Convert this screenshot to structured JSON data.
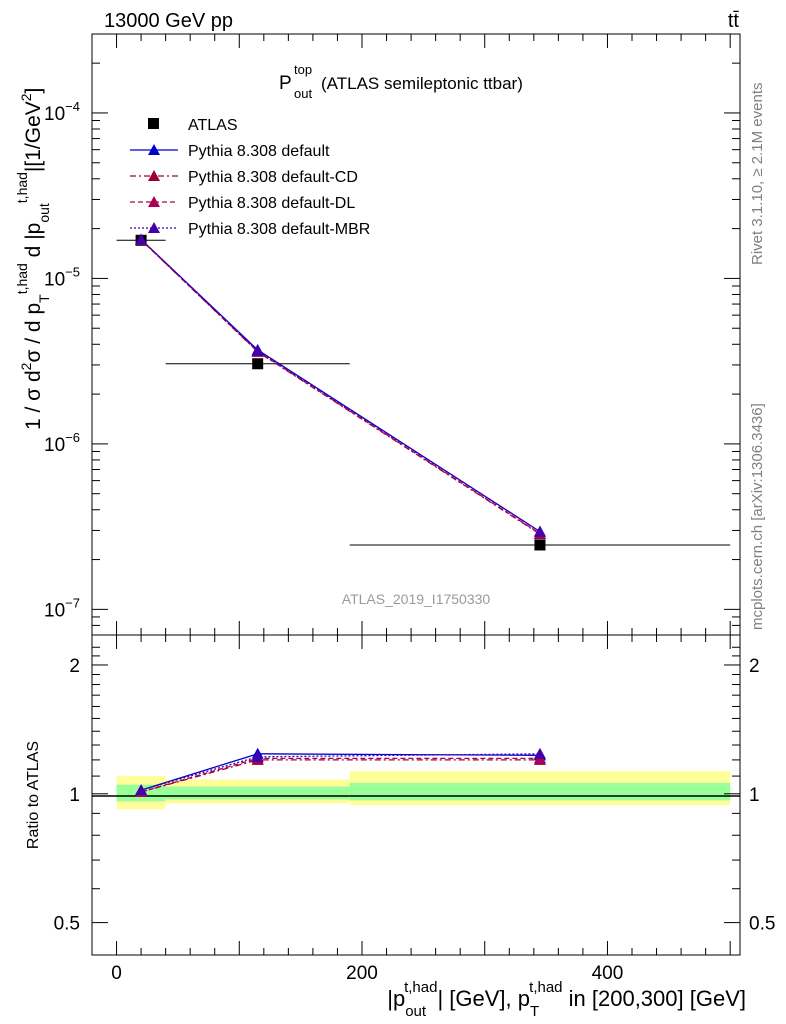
{
  "header": {
    "beam": "13000 GeV pp",
    "process": "tt̄"
  },
  "side_labels": {
    "rivet": "Rivet 3.1.10, ≥ 2.1M events",
    "source": "mcplots.cern.ch [arXiv:1306.3436]"
  },
  "analysis_id": "ATLAS_2019_I1750330",
  "chart_data": [
    {
      "type": "line",
      "title": "P_out^top (ATLAS semileptonic ttbar)",
      "title_main": "P",
      "title_sup": "top",
      "title_sub": "out",
      "title_rest": "(ATLAS semileptonic ttbar)",
      "ylabel": "1 / σ d²σ / d p_T^{t,had} d |p_out^{t,had}| [1/GeV²]",
      "yscale": "log",
      "xlim": [
        -20,
        508
      ],
      "ylim": [
        7e-08,
        0.0003
      ],
      "y_ticks": [
        {
          "label": "10",
          "exp": "−7",
          "value": 1e-07
        },
        {
          "label": "10",
          "exp": "−6",
          "value": 1e-06
        },
        {
          "label": "10",
          "exp": "−5",
          "value": 1e-05
        },
        {
          "label": "10",
          "exp": "−4",
          "value": 0.0001
        }
      ],
      "legend_position": "top-left",
      "series": [
        {
          "name": "ATLAS",
          "kind": "data",
          "color": "#000000",
          "x": [
            20,
            115,
            345
          ],
          "y": [
            1.7e-05,
            3.05e-06,
            2.45e-07
          ],
          "xerr": [
            20,
            75,
            155
          ]
        },
        {
          "name": "Pythia 8.308 default",
          "kind": "mc",
          "color": "#0000cc",
          "dash": "solid",
          "x": [
            20,
            115,
            345
          ],
          "y": [
            1.72e-05,
            3.7e-06,
            2.95e-07
          ]
        },
        {
          "name": "Pythia 8.308 default-CD",
          "kind": "mc",
          "color": "#990033",
          "dash": "6,3,2,3",
          "x": [
            20,
            115,
            345
          ],
          "y": [
            1.71e-05,
            3.6e-06,
            2.85e-07
          ]
        },
        {
          "name": "Pythia 8.308 default-DL",
          "kind": "mc",
          "color": "#aa0055",
          "dash": "5,3",
          "x": [
            20,
            115,
            345
          ],
          "y": [
            1.71e-05,
            3.62e-06,
            2.87e-07
          ]
        },
        {
          "name": "Pythia 8.308 default-MBR",
          "kind": "mc",
          "color": "#4400aa",
          "dash": "2,2",
          "x": [
            20,
            115,
            345
          ],
          "y": [
            1.72e-05,
            3.65e-06,
            2.95e-07
          ]
        }
      ]
    },
    {
      "type": "line",
      "ylabel": "Ratio to ATLAS",
      "xlabel": "|p_out^{t,had}| [GeV], p_T^{t,had} in [200,300] [GeV]",
      "yscale": "log",
      "xlim": [
        -20,
        508
      ],
      "ylim": [
        0.42,
        2.35
      ],
      "x_ticks": [
        0,
        200,
        400
      ],
      "y_ticks": [
        0.5,
        1,
        2
      ],
      "bands": [
        {
          "x": [
            0,
            40
          ],
          "green": [
            0.96,
            1.05
          ],
          "yellow": [
            0.92,
            1.1
          ]
        },
        {
          "x": [
            40,
            190
          ],
          "green": [
            0.97,
            1.04
          ],
          "yellow": [
            0.95,
            1.08
          ]
        },
        {
          "x": [
            190,
            500
          ],
          "green": [
            0.965,
            1.06
          ],
          "yellow": [
            0.94,
            1.13
          ]
        }
      ],
      "series": [
        {
          "name": "Pythia 8.308 default",
          "color": "#0000cc",
          "dash": "solid",
          "x": [
            20,
            115,
            345
          ],
          "y": [
            1.02,
            1.24,
            1.23
          ]
        },
        {
          "name": "Pythia 8.308 default-CD",
          "color": "#990033",
          "dash": "6,3,2,3",
          "x": [
            20,
            115,
            345
          ],
          "y": [
            1.01,
            1.2,
            1.2
          ]
        },
        {
          "name": "Pythia 8.308 default-DL",
          "color": "#aa0055",
          "dash": "5,3",
          "x": [
            20,
            115,
            345
          ],
          "y": [
            1.01,
            1.21,
            1.21
          ]
        },
        {
          "name": "Pythia 8.308 default-MBR",
          "color": "#4400aa",
          "dash": "2,2",
          "x": [
            20,
            115,
            345
          ],
          "y": [
            1.02,
            1.22,
            1.24
          ]
        }
      ]
    }
  ]
}
